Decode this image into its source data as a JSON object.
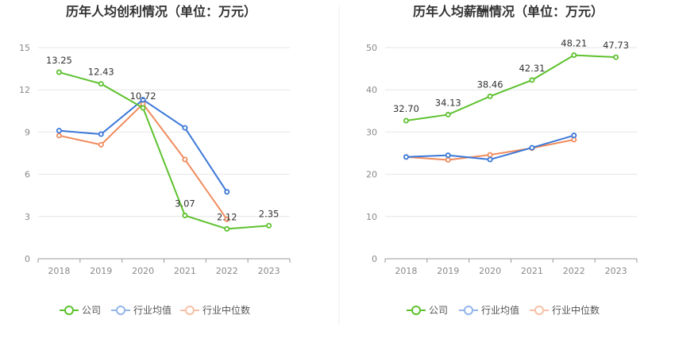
{
  "chart_data": [
    {
      "type": "line",
      "title": "历年人均创利情况（单位：万元）",
      "categories": [
        "2018",
        "2019",
        "2020",
        "2021",
        "2022",
        "2023"
      ],
      "ylim": [
        0,
        15
      ],
      "yticks": [
        0,
        3,
        6,
        9,
        12,
        15
      ],
      "grid": true,
      "legend_position": "bottom-center",
      "series": [
        {
          "name": "公司",
          "color": "#5dc12e",
          "values": [
            13.25,
            12.43,
            10.72,
            3.07,
            2.12,
            2.35
          ],
          "labels": [
            "13.25",
            "12.43",
            "10.72",
            "3.07",
            "2.12",
            "2.35"
          ]
        },
        {
          "name": "行业均值",
          "color": "#3b78d8",
          "values": [
            9.1,
            8.85,
            11.3,
            9.3,
            4.75,
            null
          ]
        },
        {
          "name": "行业中位数",
          "color": "#f08c5e",
          "values": [
            8.75,
            8.1,
            11.0,
            7.05,
            2.8,
            null
          ]
        }
      ]
    },
    {
      "type": "line",
      "title": "历年人均薪酬情况（单位：万元）",
      "categories": [
        "2018",
        "2019",
        "2020",
        "2021",
        "2022",
        "2023"
      ],
      "ylim": [
        0,
        50
      ],
      "yticks": [
        0,
        10,
        20,
        30,
        40,
        50
      ],
      "grid": true,
      "legend_position": "bottom-center",
      "series": [
        {
          "name": "公司",
          "color": "#5dc12e",
          "values": [
            32.7,
            34.13,
            38.46,
            42.31,
            48.21,
            47.73
          ],
          "labels": [
            "32.70",
            "34.13",
            "38.46",
            "42.31",
            "48.21",
            "47.73"
          ]
        },
        {
          "name": "行业均值",
          "color": "#3b78d8",
          "values": [
            24.1,
            24.5,
            23.5,
            26.3,
            29.2,
            null
          ]
        },
        {
          "name": "行业中位数",
          "color": "#f08c5e",
          "values": [
            24.1,
            23.4,
            24.6,
            26.2,
            28.2,
            null
          ]
        }
      ]
    }
  ]
}
